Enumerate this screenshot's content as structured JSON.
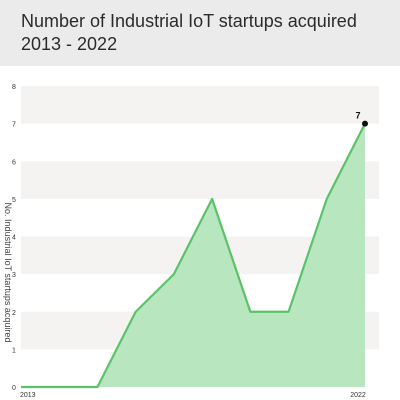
{
  "title_line1": "Number of Industrial IoT startups acquired",
  "title_line2": "2013 - 2022",
  "colors": {
    "header_bg": "#ebebeb",
    "band": "#f5f3f1",
    "line": "#5cc26a",
    "fill": "#b7e6bf",
    "point": "#111111"
  },
  "chart_data": {
    "type": "area",
    "title": "Number of Industrial IoT startups acquired 2013 - 2022",
    "xlabel": "",
    "ylabel": "No. Industrial IoT startups acquired",
    "x": [
      2013,
      2014,
      2015,
      2016,
      2017,
      2018,
      2019,
      2020,
      2021,
      2022
    ],
    "values": [
      0,
      0,
      0,
      2,
      3,
      5,
      2,
      2,
      5,
      7
    ],
    "ylim": [
      0,
      8
    ],
    "yticks": [
      0,
      1,
      2,
      3,
      4,
      5,
      6,
      7,
      8
    ],
    "xtick_labels": [
      "2013",
      "2022"
    ],
    "highlight": {
      "x": 2022,
      "value": 7,
      "label": "7"
    },
    "grid": "alternating horizontal bands",
    "legend": "none"
  }
}
